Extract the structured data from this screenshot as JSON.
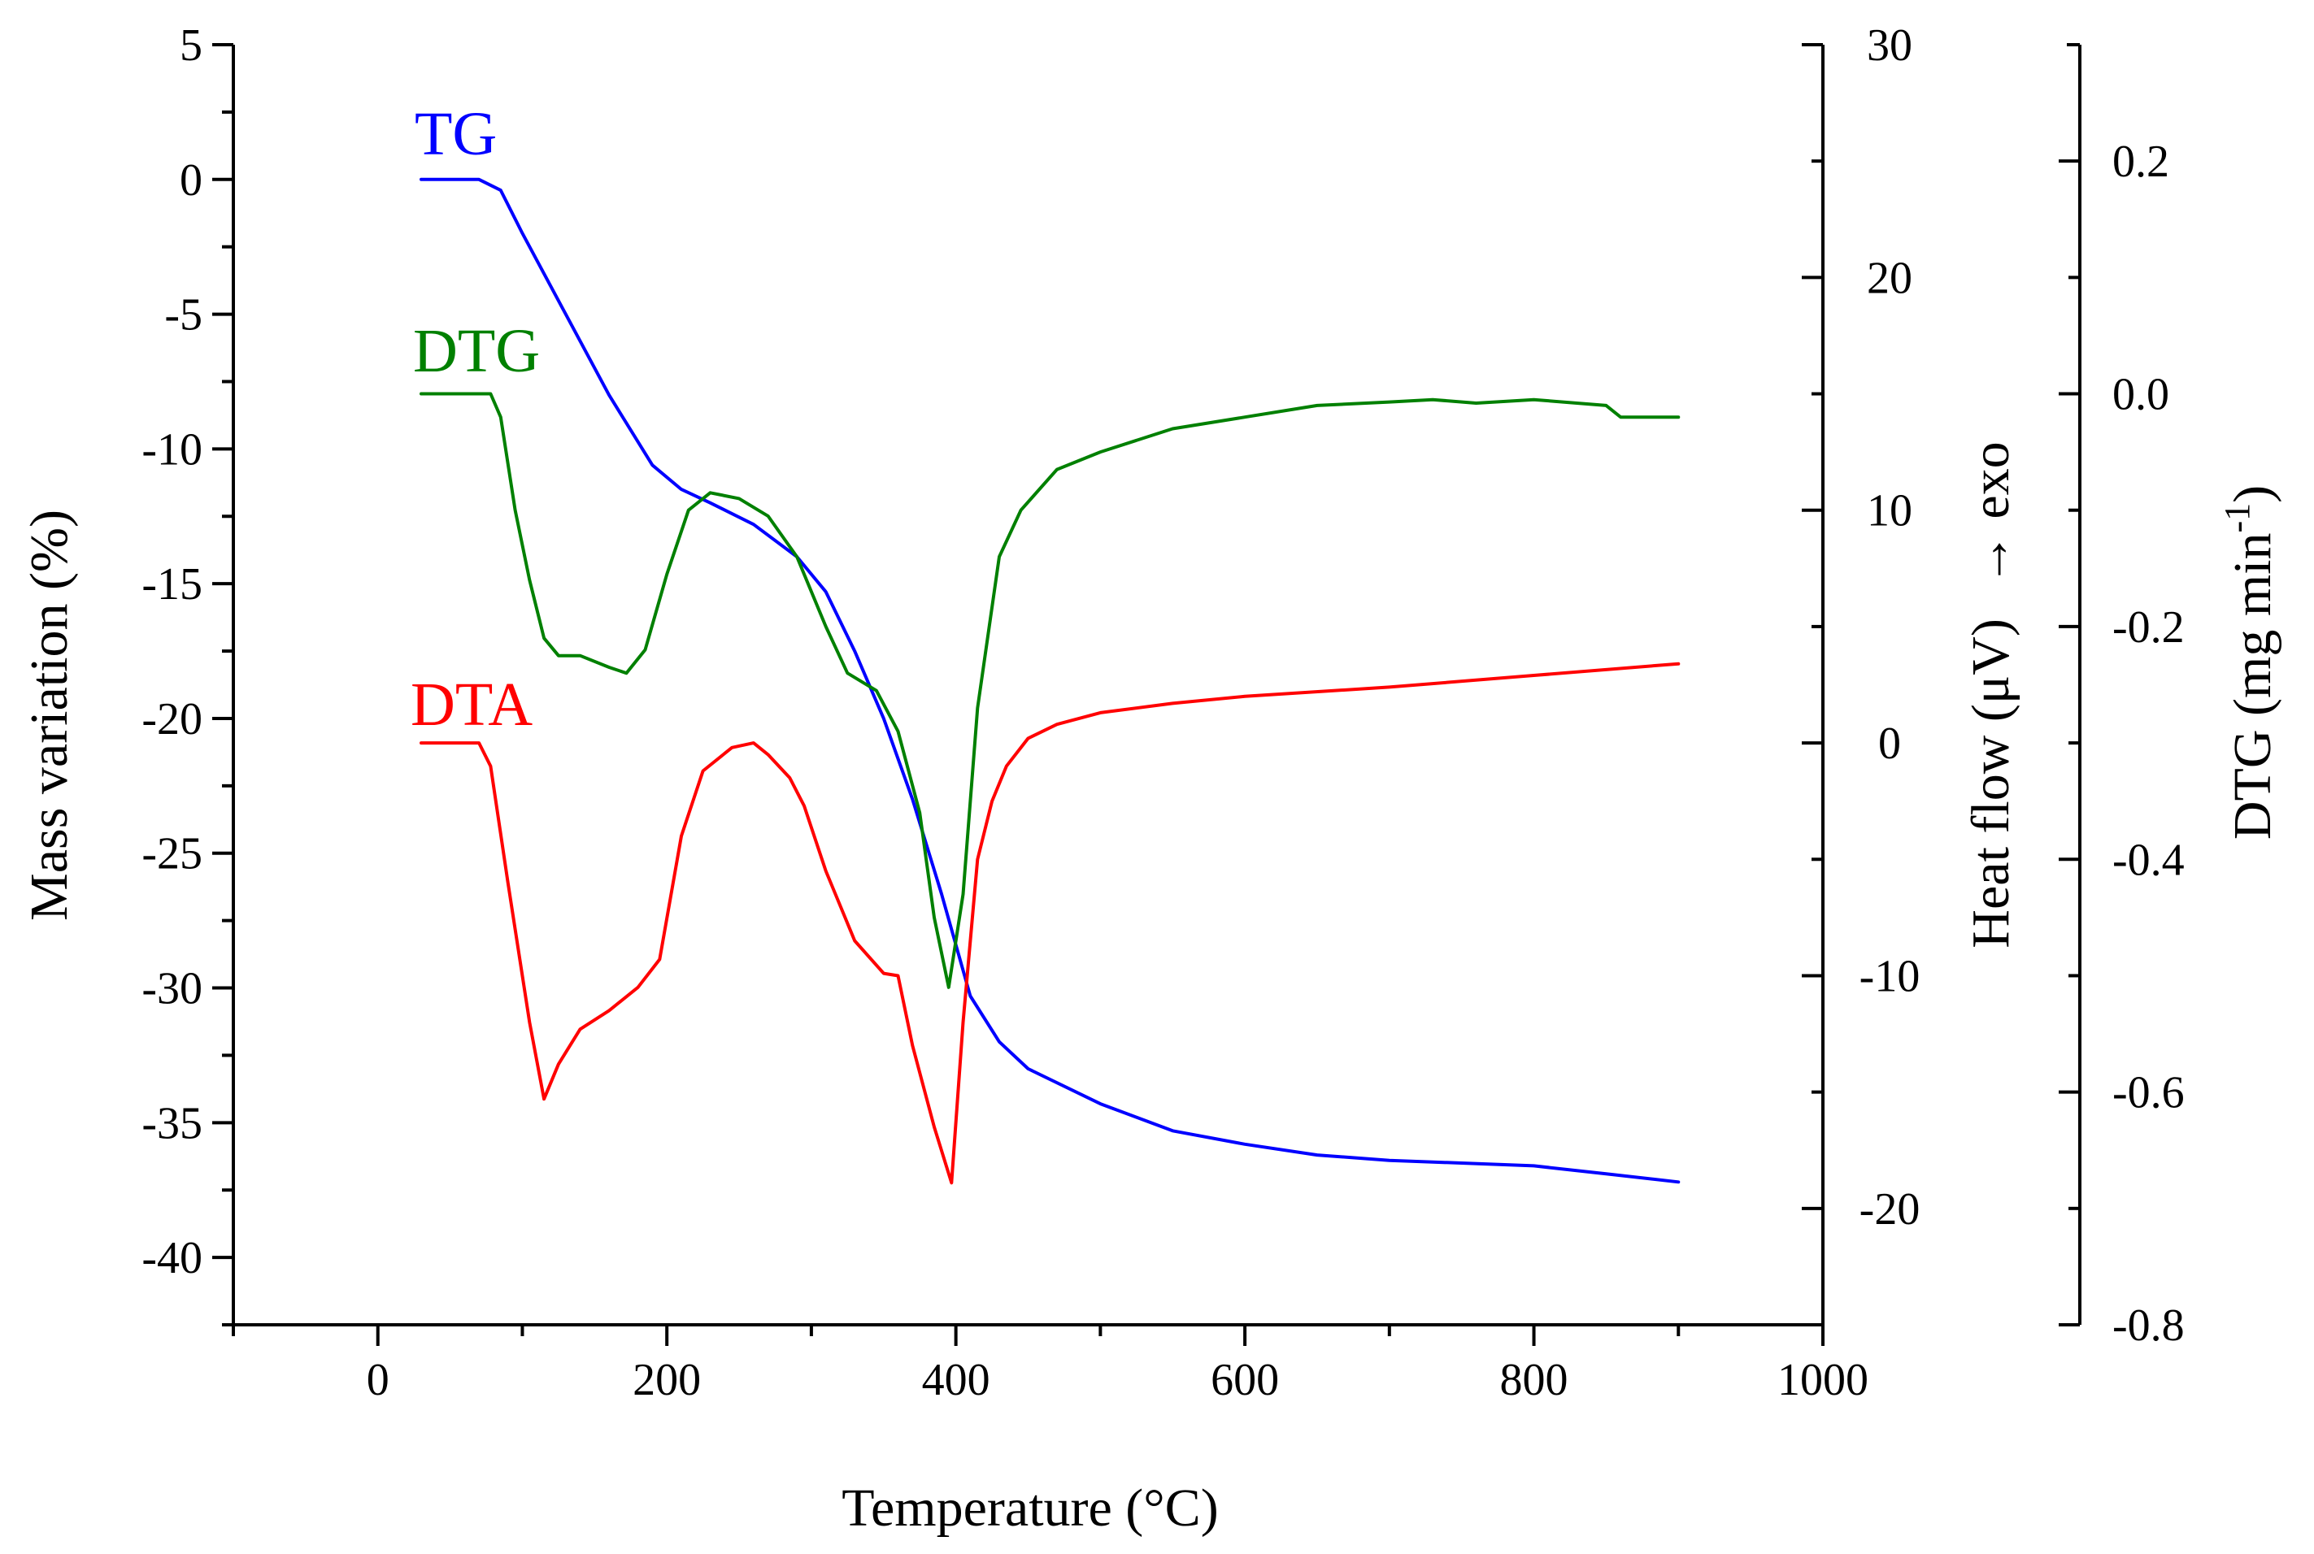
{
  "chart_data": {
    "type": "line",
    "x_axis": {
      "label": "Temperature (°C)",
      "range": [
        -100,
        1000
      ],
      "ticks": [
        "0",
        "200",
        "400",
        "600",
        "800",
        "1000"
      ]
    },
    "y_axes": {
      "mass": {
        "label": "Mass variation (%)",
        "range": [
          -42.5,
          5
        ],
        "ticks": [
          "5",
          "0",
          "-5",
          "-10",
          "-15",
          "-20",
          "-25",
          "-30",
          "-35",
          "-40"
        ]
      },
      "heat": {
        "label": "Heat flow (μV)",
        "direction_note": "→   exo",
        "range": [
          -25,
          30
        ],
        "ticks": [
          "30",
          "20",
          "10",
          "0",
          "-10",
          "-20"
        ]
      },
      "dtg": {
        "label_main": "DTG (mg min",
        "label_sup": "-1",
        "label_close": ")",
        "range": [
          -0.8,
          0.3
        ],
        "ticks": [
          "0.2",
          "0.0",
          "-0.2",
          "-0.4",
          "-0.6",
          "-0.8"
        ]
      }
    },
    "series": [
      {
        "name": "TG",
        "axis": "mass",
        "color": "#0000ff",
        "x": [
          30,
          70,
          85,
          100,
          130,
          160,
          190,
          210,
          230,
          260,
          290,
          310,
          330,
          350,
          370,
          390,
          410,
          430,
          450,
          500,
          550,
          600,
          650,
          700,
          800,
          850,
          900
        ],
        "y": [
          0,
          0,
          -0.4,
          -2.0,
          -5.0,
          -8.0,
          -10.6,
          -11.5,
          -12.0,
          -12.8,
          -14.0,
          -15.3,
          -17.5,
          -20.0,
          -23.0,
          -26.5,
          -30.3,
          -32.0,
          -33.0,
          -34.3,
          -35.3,
          -35.8,
          -36.2,
          -36.4,
          -36.6,
          -36.9,
          -37.2
        ]
      },
      {
        "name": "DTG",
        "axis": "dtg",
        "color": "#008000",
        "x": [
          30,
          78,
          85,
          95,
          105,
          115,
          125,
          140,
          160,
          172,
          185,
          200,
          215,
          230,
          250,
          270,
          290,
          310,
          325,
          345,
          360,
          375,
          385,
          395,
          405,
          415,
          430,
          445,
          470,
          500,
          550,
          600,
          650,
          700,
          730,
          760,
          800,
          850,
          860,
          900
        ],
        "y": [
          0,
          0,
          -0.02,
          -0.1,
          -0.16,
          -0.21,
          -0.225,
          -0.225,
          -0.235,
          -0.24,
          -0.22,
          -0.155,
          -0.1,
          -0.085,
          -0.09,
          -0.105,
          -0.14,
          -0.2,
          -0.24,
          -0.255,
          -0.29,
          -0.36,
          -0.45,
          -0.51,
          -0.43,
          -0.27,
          -0.14,
          -0.1,
          -0.065,
          -0.05,
          -0.03,
          -0.02,
          -0.01,
          -0.007,
          -0.005,
          -0.008,
          -0.005,
          -0.01,
          -0.02,
          -0.02
        ]
      },
      {
        "name": "DTA",
        "axis": "heat",
        "color": "#ff0000",
        "x": [
          30,
          70,
          78,
          90,
          105,
          115,
          125,
          140,
          160,
          180,
          195,
          210,
          225,
          245,
          260,
          270,
          285,
          295,
          310,
          330,
          350,
          360,
          370,
          385,
          397,
          405,
          415,
          425,
          435,
          450,
          470,
          500,
          550,
          600,
          700,
          800,
          900
        ],
        "y": [
          0,
          0,
          -1,
          -6,
          -12,
          -15.3,
          -13.8,
          -12.3,
          -11.5,
          -10.5,
          -9.3,
          -4,
          -1.2,
          -0.2,
          0,
          -0.5,
          -1.5,
          -2.7,
          -5.5,
          -8.5,
          -9.9,
          -10.0,
          -13,
          -16.5,
          -18.9,
          -12,
          -5,
          -2.5,
          -1,
          0.2,
          0.8,
          1.3,
          1.7,
          2.0,
          2.4,
          2.9,
          3.4
        ]
      }
    ]
  }
}
